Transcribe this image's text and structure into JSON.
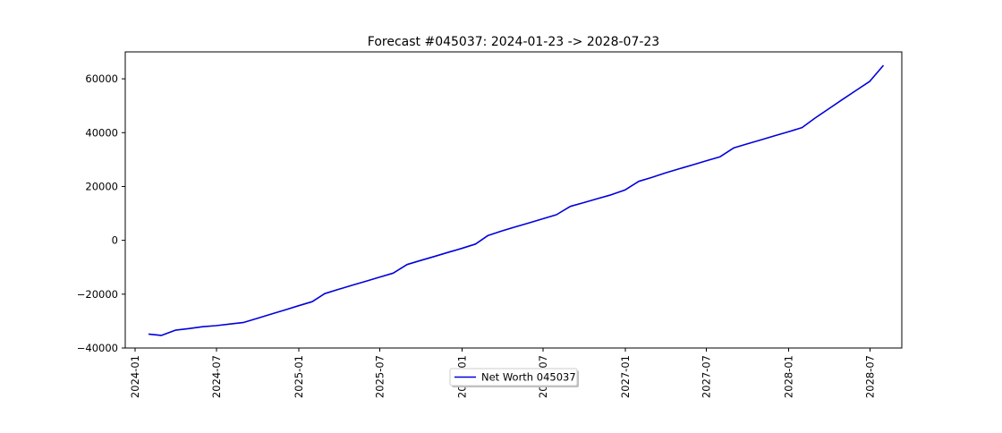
{
  "chart_data": {
    "type": "line",
    "title": "Forecast #045037: 2024-01-23 -> 2028-07-23",
    "xlabel": "",
    "ylabel": "",
    "xlim": [
      "2023-12-10",
      "2028-09-10"
    ],
    "ylim": [
      -40000,
      70000
    ],
    "x_ticks": [
      "2024-01",
      "2024-07",
      "2025-01",
      "2025-07",
      "2026-01",
      "2026-07",
      "2027-01",
      "2027-07",
      "2028-01",
      "2028-07"
    ],
    "y_ticks": [
      -40000,
      -20000,
      0,
      20000,
      40000,
      60000
    ],
    "y_tick_labels": [
      "−40000",
      "−20000",
      "0",
      "20000",
      "40000",
      "60000"
    ],
    "grid": false,
    "legend_position": "bottom-center",
    "series": [
      {
        "name": "Net Worth 045037",
        "color": "#0000dd",
        "x": [
          "2024-01-31",
          "2024-02-29",
          "2024-03-31",
          "2024-04-30",
          "2024-05-31",
          "2024-06-30",
          "2024-07-31",
          "2024-08-31",
          "2024-09-30",
          "2024-10-31",
          "2024-11-30",
          "2024-12-31",
          "2025-01-31",
          "2025-02-28",
          "2025-03-31",
          "2025-04-30",
          "2025-05-31",
          "2025-06-30",
          "2025-07-31",
          "2025-08-31",
          "2025-09-30",
          "2025-10-31",
          "2025-11-30",
          "2025-12-31",
          "2026-01-31",
          "2026-02-28",
          "2026-03-31",
          "2026-04-30",
          "2026-05-31",
          "2026-06-30",
          "2026-07-31",
          "2026-08-31",
          "2026-09-30",
          "2026-10-31",
          "2026-11-30",
          "2026-12-31",
          "2027-01-31",
          "2027-02-28",
          "2027-03-31",
          "2027-04-30",
          "2027-05-31",
          "2027-06-30",
          "2027-07-31",
          "2027-08-31",
          "2027-09-30",
          "2027-10-31",
          "2027-11-30",
          "2027-12-31",
          "2028-01-31",
          "2028-02-29",
          "2028-03-31",
          "2028-04-30",
          "2028-05-31",
          "2028-06-30",
          "2028-07-31"
        ],
        "values": [
          -34800,
          -35300,
          -33400,
          -32800,
          -32100,
          -31700,
          -31100,
          -30500,
          -29000,
          -27400,
          -25900,
          -24300,
          -22800,
          -19800,
          -18200,
          -16700,
          -15200,
          -13700,
          -12200,
          -9000,
          -7500,
          -6000,
          -4500,
          -3000,
          -1400,
          1800,
          3500,
          5000,
          6500,
          8000,
          9500,
          12600,
          14000,
          15500,
          16900,
          18700,
          21900,
          23300,
          25000,
          26500,
          28000,
          29500,
          31000,
          34300,
          35800,
          37300,
          38800,
          40300,
          41900,
          45400,
          48900,
          52300,
          55700,
          59000,
          65000
        ]
      }
    ]
  }
}
